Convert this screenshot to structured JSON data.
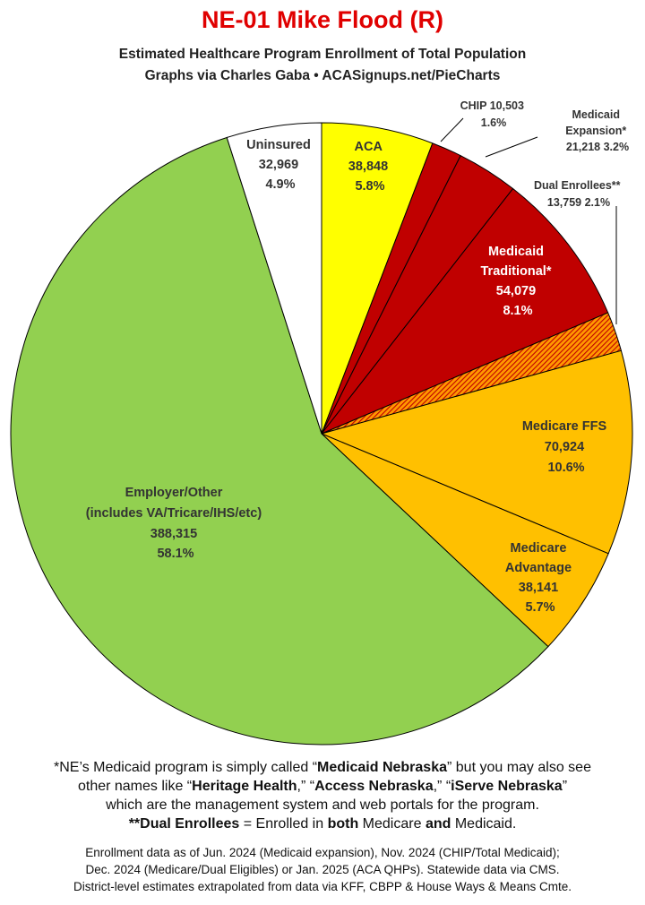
{
  "header": {
    "title": "NE-01 Mike Flood (R)",
    "subtitle_line1": "Estimated Healthcare Program Enrollment of Total Population",
    "subtitle_line2": "Graphs via Charles Gaba  •  ACASignups.net/PieCharts"
  },
  "chart_data": {
    "type": "pie",
    "title": "NE-01 Mike Flood (R)",
    "subtitle": "Estimated Healthcare Program Enrollment of Total Population",
    "start_angle": "12 o'clock, clockwise",
    "slices": [
      {
        "label": "ACA",
        "value": 38848,
        "percent": "5.8%",
        "color": "#ffff00",
        "value_text": "38,848"
      },
      {
        "label": "CHIP",
        "value": 10503,
        "percent": "1.6%",
        "color": "#c00000",
        "value_text": "10,503"
      },
      {
        "label": "Medicaid Expansion*",
        "value": 21218,
        "percent": "3.2%",
        "color": "#c00000",
        "value_text": "21,218"
      },
      {
        "label": "Medicaid Traditional*",
        "value": 54079,
        "percent": "8.1%",
        "color": "#c00000",
        "value_text": "54,079"
      },
      {
        "label": "Dual Enrollees**",
        "value": 13759,
        "percent": "2.1%",
        "color": "#c00000",
        "pattern": "hatched orange",
        "value_text": "13,759"
      },
      {
        "label": "Medicare FFS",
        "value": 70924,
        "percent": "10.6%",
        "color": "#ffc000",
        "value_text": "70,924"
      },
      {
        "label": "Medicare Advantage",
        "value": 38141,
        "percent": "5.7%",
        "color": "#ffc000",
        "value_text": "38,141"
      },
      {
        "label": "Employer/Other (includes VA/Tricare/IHS/etc)",
        "value": 388315,
        "percent": "58.1%",
        "color": "#92d050",
        "value_text": "388,315"
      },
      {
        "label": "Uninsured",
        "value": 32969,
        "percent": "4.9%",
        "color": "#ffffff",
        "value_text": "32,969"
      }
    ],
    "labels": {
      "aca": [
        "ACA",
        "38,848",
        "5.8%"
      ],
      "chip": [
        "CHIP 10,503",
        "1.6%"
      ],
      "expansion": [
        "Medicaid",
        "Expansion*",
        "21,218 3.2%"
      ],
      "dual": [
        "Dual Enrollees**",
        "13,759 2.1%"
      ],
      "traditional": [
        "Medicaid",
        "Traditional*",
        "54,079",
        "8.1%"
      ],
      "ffs": [
        "Medicare FFS",
        "70,924",
        "10.6%"
      ],
      "advantage": [
        "Medicare",
        "Advantage",
        "38,141",
        "5.7%"
      ],
      "employer": [
        "Employer/Other",
        "(includes VA/Tricare/IHS/etc)",
        "388,315",
        "58.1%"
      ],
      "uninsured": [
        "Uninsured",
        "32,969",
        "4.9%"
      ]
    }
  },
  "footnotes": {
    "line1_a": "*NE’s Medicaid program is simply called “",
    "line1_b": "Medicaid Nebraska",
    "line1_c": "” but you may also see",
    "line2_a": "other names like “",
    "line2_b": "Heritage Health",
    "line2_c": ",” “",
    "line2_d": "Access Nebraska",
    "line2_e": ",” “",
    "line2_f": "iServe Nebraska",
    "line2_g": "”",
    "line3": "which are the management system and web portals for the program.",
    "line4_a": "**Dual Enrollees",
    "line4_b": " = Enrolled in ",
    "line4_c": "both",
    "line4_d": " Medicare ",
    "line4_e": "and",
    "line4_f": " Medicaid."
  },
  "source": {
    "line1": "Enrollment data as of Jun. 2024 (Medicaid expansion), Nov. 2024 (CHIP/Total Medicaid);",
    "line2": "Dec. 2024 (Medicare/Dual Eligibles) or Jan. 2025 (ACA QHPs). Statewide data via CMS.",
    "line3": "District-level estimates extrapolated from data via KFF, CBPP & House Ways & Means Cmte."
  }
}
